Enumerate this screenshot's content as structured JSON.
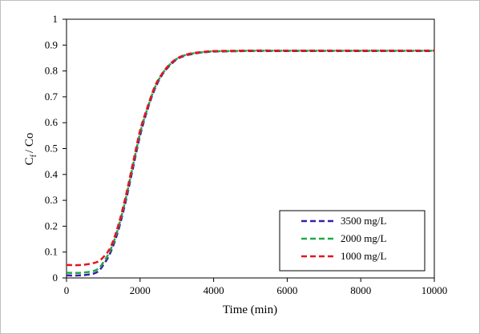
{
  "chart_data": {
    "type": "line",
    "title": "",
    "xlabel": "Time (min)",
    "ylabel": {
      "main": "C",
      "sub": "f",
      "rest": "/ Co"
    },
    "xlim": [
      0,
      10000
    ],
    "ylim": [
      0,
      1
    ],
    "xticks": [
      "0",
      "2000",
      "4000",
      "6000",
      "8000",
      "10000"
    ],
    "yticks": [
      "0",
      "0.1",
      "0.2",
      "0.3",
      "0.4",
      "0.5",
      "0.6",
      "0.7",
      "0.8",
      "0.9",
      "1"
    ],
    "grid": false,
    "legend_position": "bottom-right",
    "x": [
      0,
      400,
      800,
      1000,
      1200,
      1400,
      1600,
      1800,
      2000,
      2200,
      2400,
      2600,
      2800,
      3000,
      3200,
      3400,
      3600,
      3800,
      4000,
      4500,
      5000,
      6000,
      7000,
      8000,
      9000,
      10000
    ],
    "series": [
      {
        "name": "3500 mg/L",
        "color": "#3a1fa8",
        "values": [
          0.01,
          0.01,
          0.02,
          0.05,
          0.1,
          0.18,
          0.29,
          0.42,
          0.55,
          0.65,
          0.73,
          0.785,
          0.82,
          0.845,
          0.858,
          0.865,
          0.87,
          0.873,
          0.875,
          0.876,
          0.877,
          0.877,
          0.877,
          0.877,
          0.877,
          0.877
        ]
      },
      {
        "name": "2000 mg/L",
        "color": "#20a84a",
        "values": [
          0.02,
          0.02,
          0.03,
          0.06,
          0.11,
          0.19,
          0.3,
          0.43,
          0.56,
          0.655,
          0.735,
          0.788,
          0.823,
          0.847,
          0.86,
          0.867,
          0.871,
          0.874,
          0.876,
          0.877,
          0.878,
          0.878,
          0.878,
          0.878,
          0.878,
          0.878
        ]
      },
      {
        "name": "1000 mg/L",
        "color": "#e8141e",
        "values": [
          0.05,
          0.05,
          0.06,
          0.08,
          0.12,
          0.2,
          0.31,
          0.44,
          0.57,
          0.66,
          0.74,
          0.79,
          0.825,
          0.848,
          0.861,
          0.868,
          0.872,
          0.875,
          0.877,
          0.878,
          0.879,
          0.879,
          0.879,
          0.879,
          0.879,
          0.879
        ]
      }
    ]
  }
}
